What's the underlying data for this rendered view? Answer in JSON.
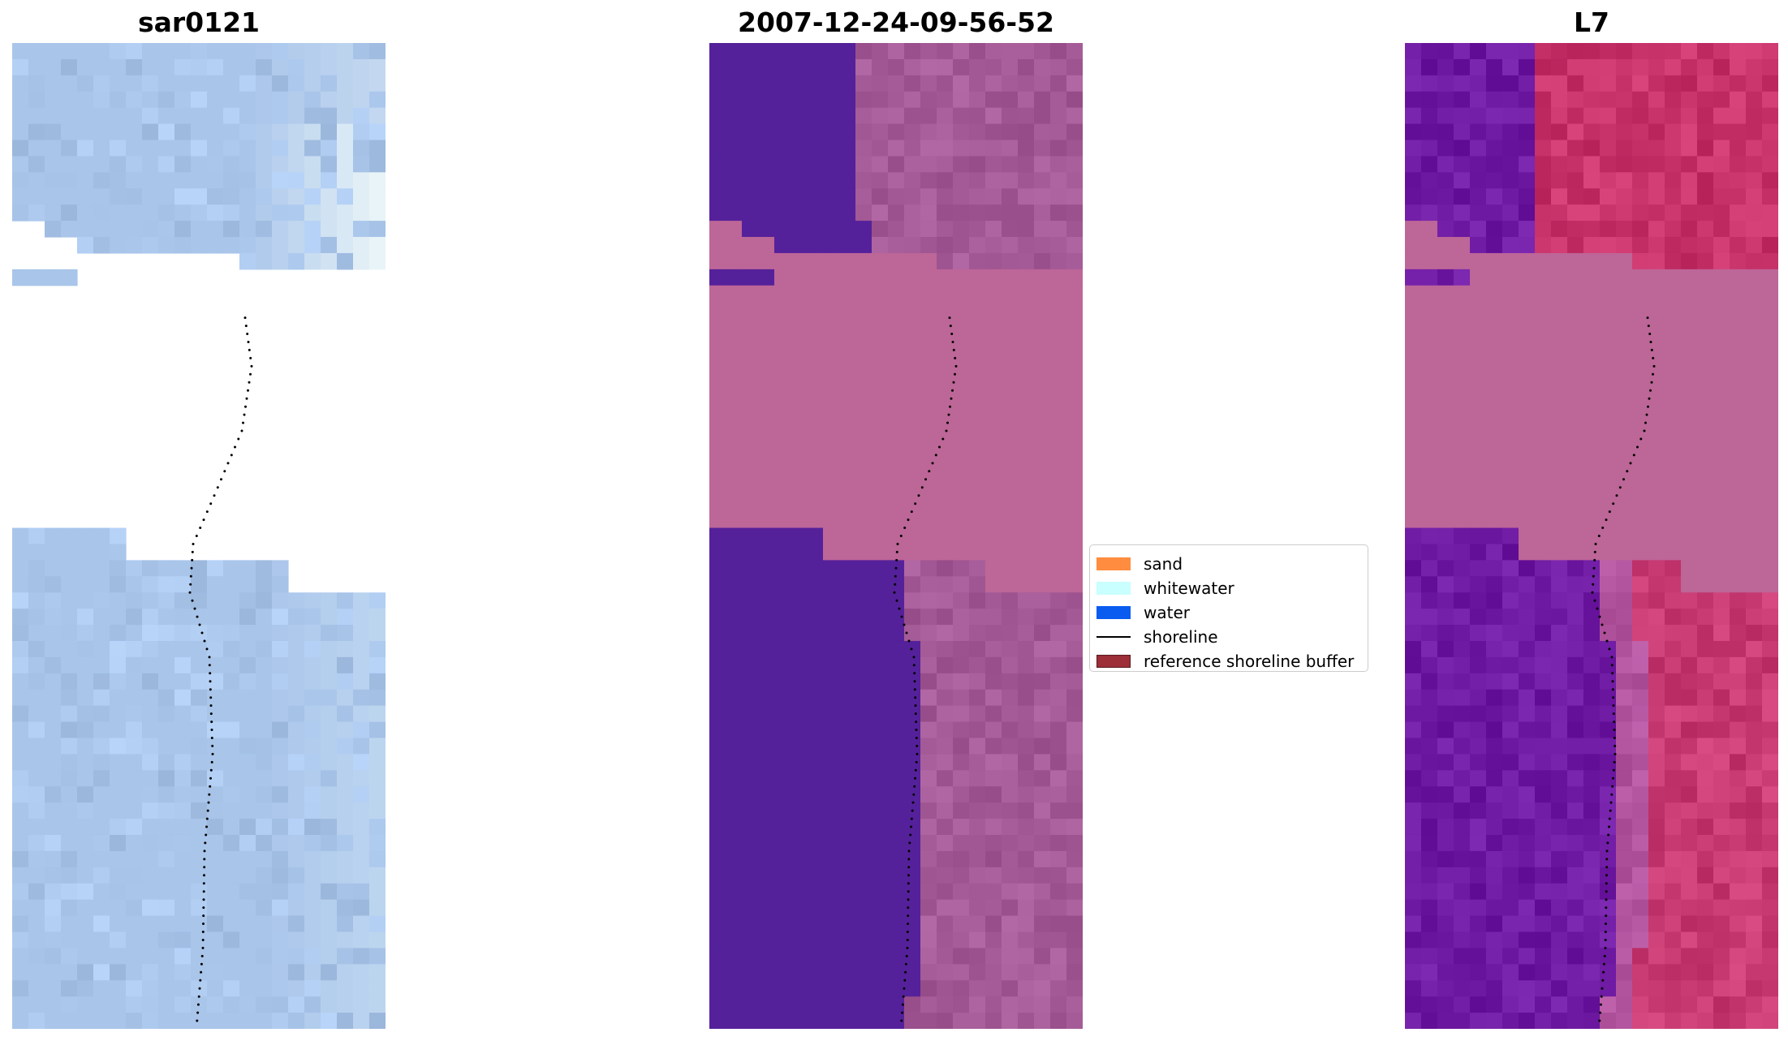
{
  "panels": [
    {
      "title": "sar0121",
      "type": "rgb"
    },
    {
      "title": "2007-12-24-09-56-52",
      "type": "classified"
    },
    {
      "title": "L7",
      "type": "mndwi"
    }
  ],
  "legend": {
    "items": [
      {
        "label": "sand",
        "kind": "patch",
        "color": "#ff8c3f",
        "edge": "#ff8c3f"
      },
      {
        "label": "whitewater",
        "kind": "patch",
        "color": "#c9ffff",
        "edge": "#c9ffff"
      },
      {
        "label": "water",
        "kind": "patch",
        "color": "#0a5cf0",
        "edge": "#0a5cf0"
      },
      {
        "label": "shoreline",
        "kind": "line",
        "color": "#000000",
        "edge": "#000000"
      },
      {
        "label": "reference shoreline buffer",
        "kind": "patch",
        "color": "#9c2f37",
        "edge": "#5a1a1e"
      }
    ]
  },
  "colors": {
    "sar_base": "#a9c5ea",
    "classified_water": "#55219a",
    "classified_mask": "#bd6698",
    "classified_sand": "#a45a96",
    "mndwi_water": "#6e1aa2",
    "mndwi_land": "#c83a72",
    "mask_fill": "#bd6698",
    "shoreline_dot": "#000000"
  }
}
